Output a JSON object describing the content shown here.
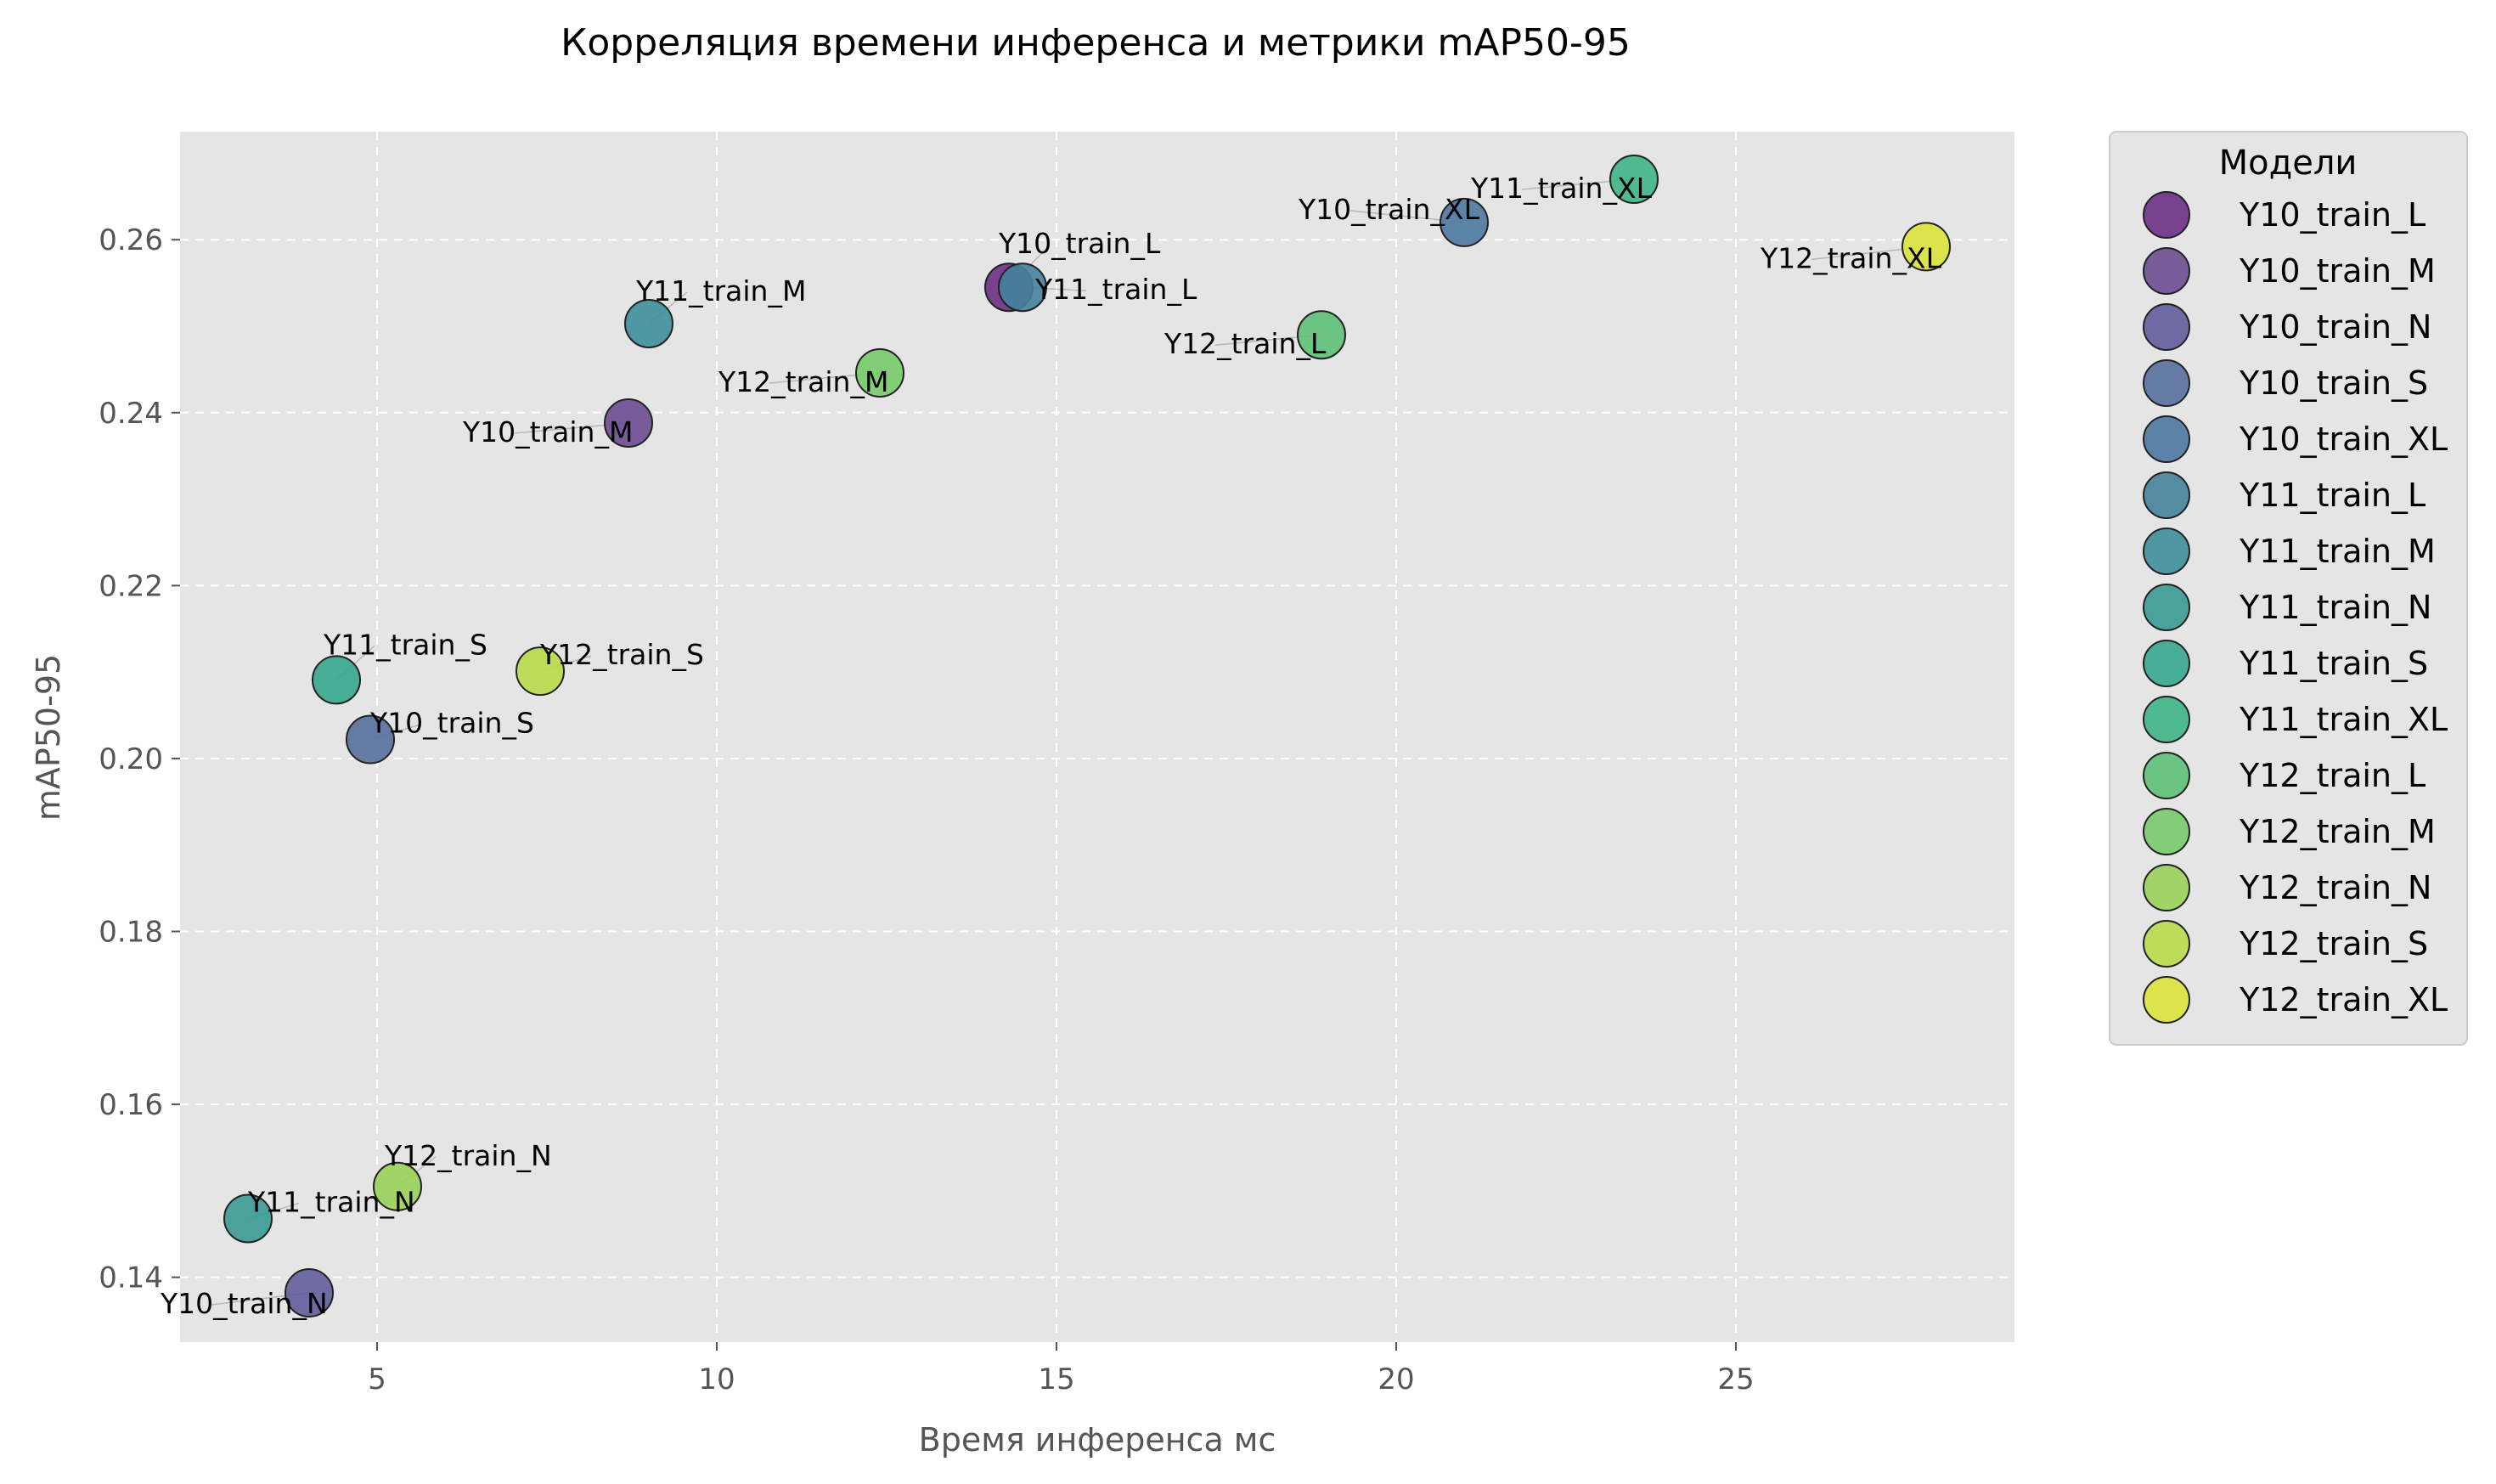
{
  "chart_data": {
    "type": "scatter",
    "title": "Корреляция времени инференса и метрики mAP50-95",
    "xlabel": "Время инференса мс",
    "ylabel": "mAP50-95",
    "xlim": [
      2.1,
      29.1
    ],
    "ylim": [
      0.1325,
      0.2725
    ],
    "xticks": [
      5,
      10,
      15,
      20,
      25
    ],
    "yticks": [
      0.14,
      0.16,
      0.18,
      0.2,
      0.22,
      0.24,
      0.26
    ],
    "ytick_labels": [
      "0.14",
      "0.16",
      "0.18",
      "0.20",
      "0.22",
      "0.24",
      "0.26"
    ],
    "grid": true,
    "legend_title": "Модели",
    "legend_position": "outside-right",
    "points": [
      {
        "label": "Y10_train_L",
        "x": 14.3,
        "y": 0.2545,
        "color": "#6a2f84"
      },
      {
        "label": "Y10_train_M",
        "x": 8.7,
        "y": 0.2388,
        "color": "#6d4b91"
      },
      {
        "label": "Y10_train_N",
        "x": 4.0,
        "y": 0.1382,
        "color": "#5f5c9c"
      },
      {
        "label": "Y10_train_S",
        "x": 4.9,
        "y": 0.2022,
        "color": "#566f9f"
      },
      {
        "label": "Y10_train_XL",
        "x": 21.0,
        "y": 0.262,
        "color": "#4c78a0"
      },
      {
        "label": "Y11_train_L",
        "x": 14.5,
        "y": 0.2545,
        "color": "#44829b"
      },
      {
        "label": "Y11_train_M",
        "x": 9.0,
        "y": 0.2503,
        "color": "#3e8e9a"
      },
      {
        "label": "Y11_train_N",
        "x": 3.1,
        "y": 0.1468,
        "color": "#3a9a95"
      },
      {
        "label": "Y11_train_S",
        "x": 4.4,
        "y": 0.2091,
        "color": "#35a68e"
      },
      {
        "label": "Y11_train_XL",
        "x": 23.5,
        "y": 0.267,
        "color": "#3eb485"
      },
      {
        "label": "Y12_train_L",
        "x": 18.9,
        "y": 0.249,
        "color": "#5dc076"
      },
      {
        "label": "Y12_train_M",
        "x": 12.4,
        "y": 0.2446,
        "color": "#78ca6c"
      },
      {
        "label": "Y12_train_N",
        "x": 5.3,
        "y": 0.1505,
        "color": "#99d259"
      },
      {
        "label": "Y12_train_S",
        "x": 7.4,
        "y": 0.2101,
        "color": "#b8dc4a"
      },
      {
        "label": "Y12_train_XL",
        "x": 27.8,
        "y": 0.2592,
        "color": "#dbe23a"
      }
    ]
  }
}
